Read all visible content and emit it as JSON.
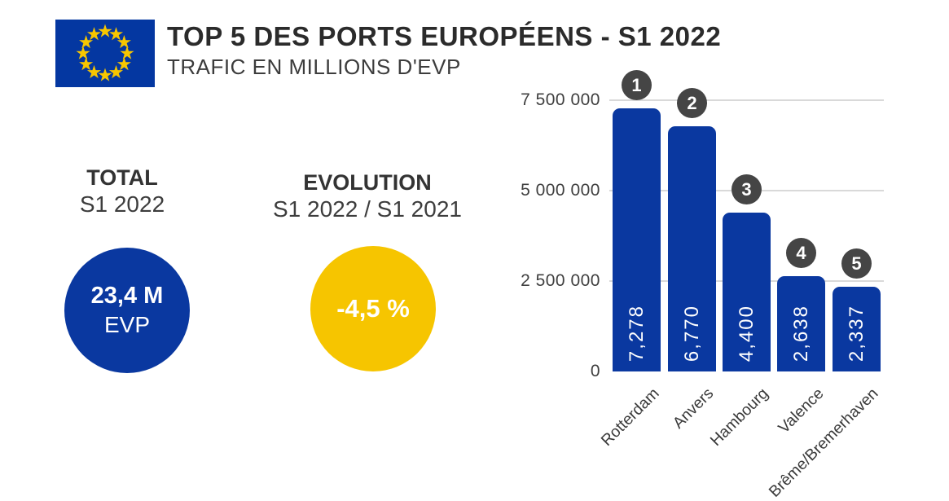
{
  "header": {
    "title": "TOP 5 DES PORTS EUROPÉENS - S1 2022",
    "subtitle": "TRAFIC EN MILLIONS D'EVP",
    "logo": "eu-flag"
  },
  "stats": {
    "total": {
      "heading": "TOTAL",
      "subheading": "S1 2022",
      "value": "23,4 M",
      "unit": "EVP"
    },
    "evolution": {
      "heading": "EVOLUTION",
      "subheading": "S1 2022 / S1 2021",
      "value": "-4,5 %"
    }
  },
  "chart_data": {
    "type": "bar",
    "title": "TOP 5 DES PORTS EUROPÉENS - S1 2022",
    "unit": "EVP",
    "categories": [
      "Rotterdam",
      "Anvers",
      "Hambourg",
      "Valence",
      "Brême/Bremerhaven"
    ],
    "values": [
      7278000,
      6770000,
      4400000,
      2638000,
      2337000
    ],
    "bar_labels": [
      "7,278",
      "6,770",
      "4,400",
      "2,638",
      "2,337"
    ],
    "ranks": [
      "1",
      "2",
      "3",
      "4",
      "5"
    ],
    "y_tick_labels": [
      "7 500 000",
      "5 000 000",
      "2 500 000",
      "0"
    ],
    "y_tick_values": [
      7500000,
      5000000,
      2500000,
      0
    ],
    "ylim": [
      0,
      8000000
    ],
    "grid": true,
    "xlabel": "",
    "ylabel": ""
  },
  "colors": {
    "accent_blue": "#0a38a0",
    "flag_blue": "#0437a1",
    "star_yellow": "#f7c600",
    "accent_yellow": "#f6c500",
    "badge_gray": "#454545",
    "grid_gray": "#d9d9d9",
    "ink_dark": "#2b2b2b",
    "ink_medium": "#3c3c3c",
    "text_on_accent": "#ffffff"
  }
}
